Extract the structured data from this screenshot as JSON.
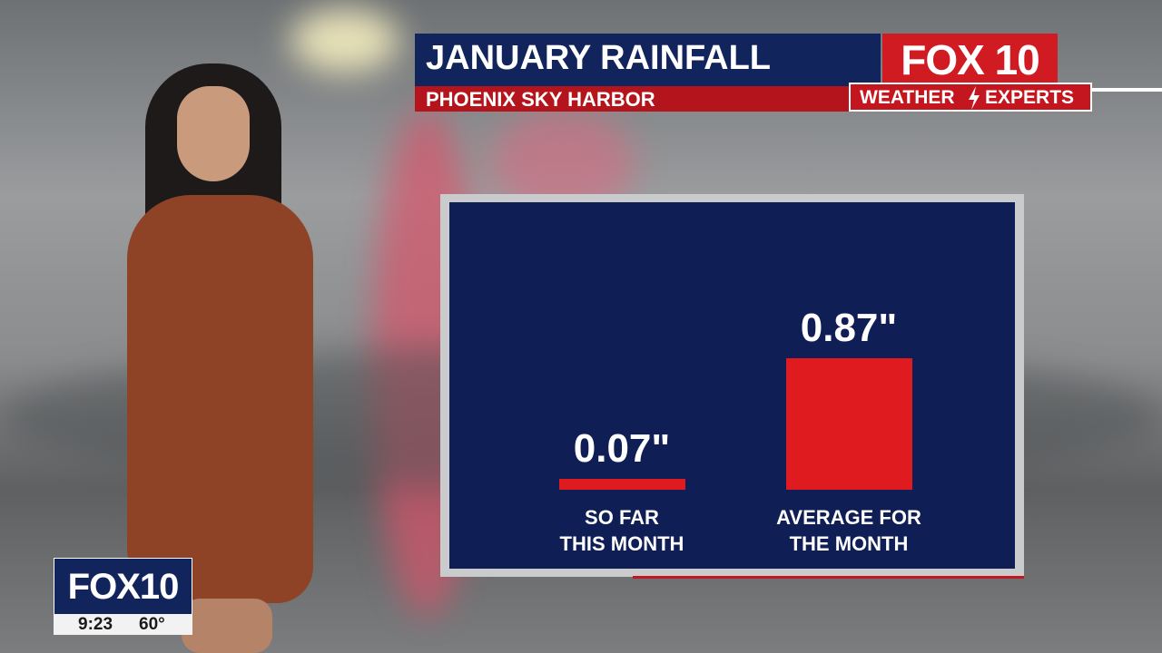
{
  "chart_data": {
    "type": "bar",
    "title": "JANUARY RAINFALL",
    "subtitle": "PHOENIX SKY HARBOR",
    "categories": [
      "SO FAR\nTHIS MONTH",
      "AVERAGE FOR\nTHE MONTH"
    ],
    "values": [
      0.07,
      0.87
    ],
    "value_labels": [
      "0.07\"",
      "0.87\""
    ],
    "color": "#e01b1f"
  },
  "logo": {
    "name": "FOX 10",
    "tagline_left": "WEATHER",
    "tagline_right": "EXPERTS"
  },
  "bug": {
    "name": "FOX10",
    "time": "9:23",
    "temperature": "60°"
  }
}
